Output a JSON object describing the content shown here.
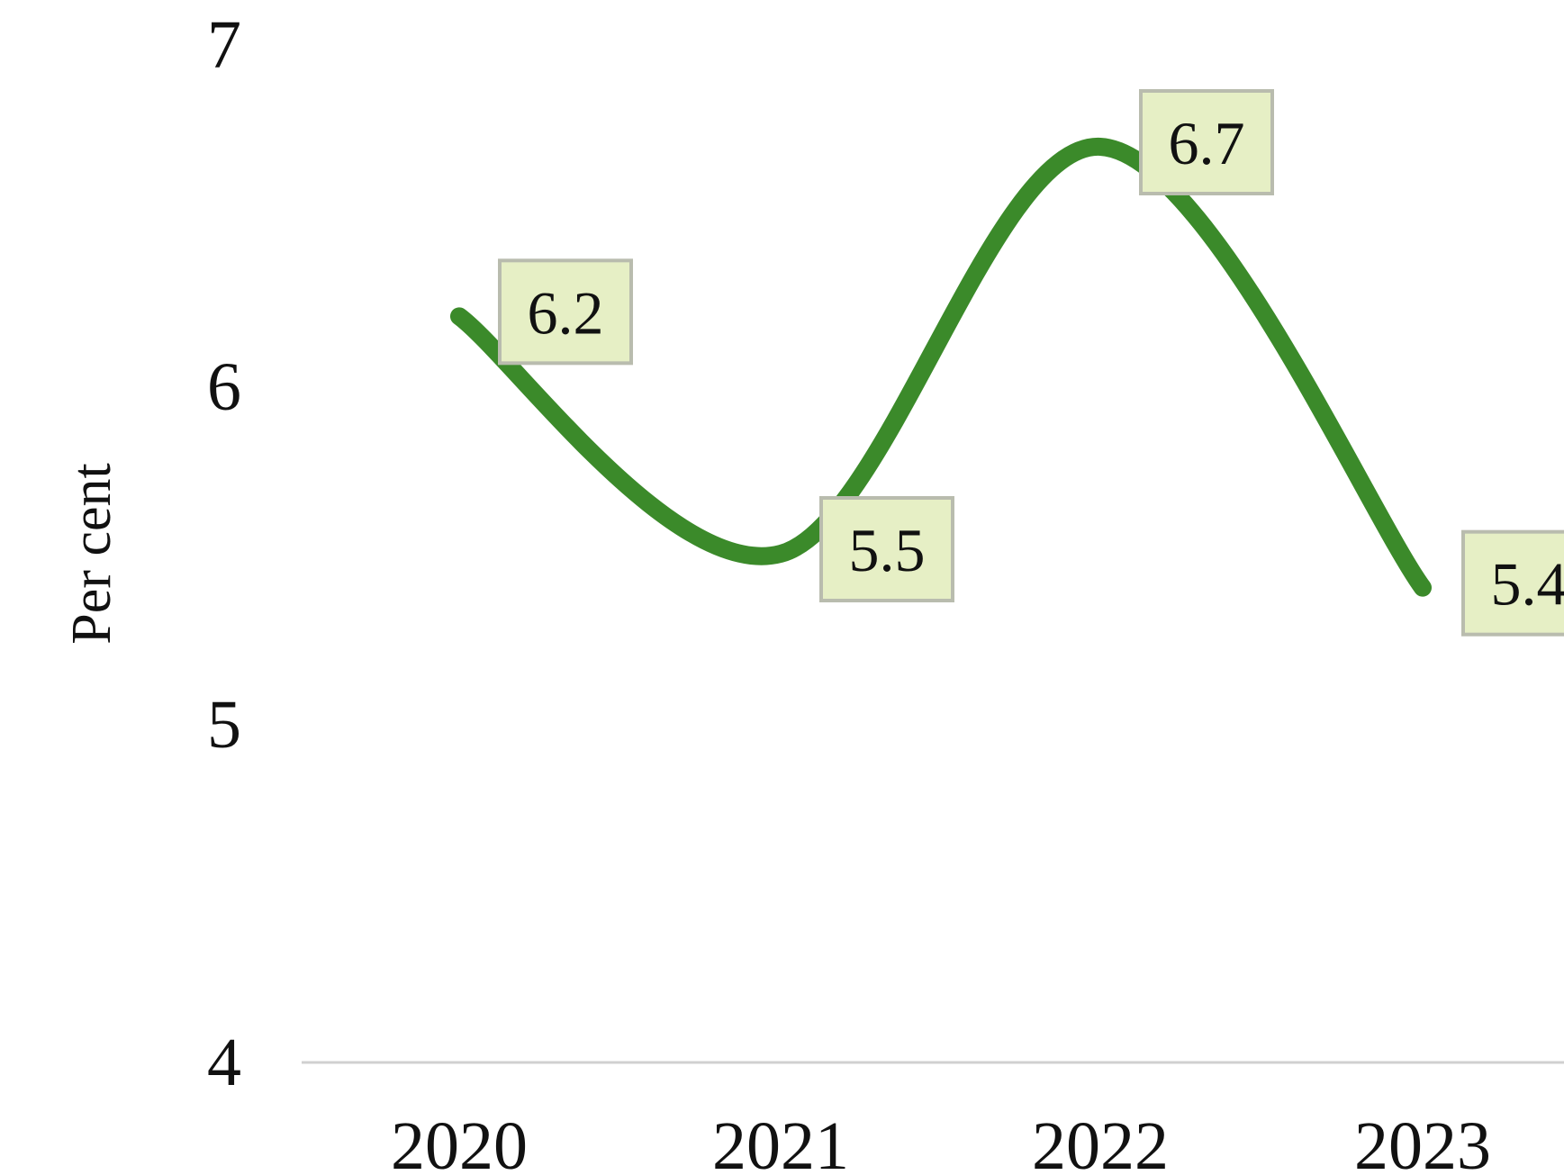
{
  "chart_data": {
    "type": "line",
    "title": "",
    "xlabel": "",
    "ylabel": "Per cent",
    "categories": [
      "2020",
      "2021",
      "2022",
      "2023"
    ],
    "series": [
      {
        "values": [
          6.2,
          5.5,
          6.7,
          5.4
        ]
      }
    ],
    "data_labels": [
      "6.2",
      "5.5",
      "6.7",
      "5.4"
    ],
    "y_ticks": [
      "7",
      "6",
      "5",
      "4"
    ],
    "ylim": [
      4,
      7
    ],
    "grid": false,
    "smooth": true,
    "colors": {
      "line": "#3b8a2a",
      "label_fill": "#e6efc5",
      "label_border": "#b9bcae",
      "axis": "#d0d0d0"
    }
  }
}
